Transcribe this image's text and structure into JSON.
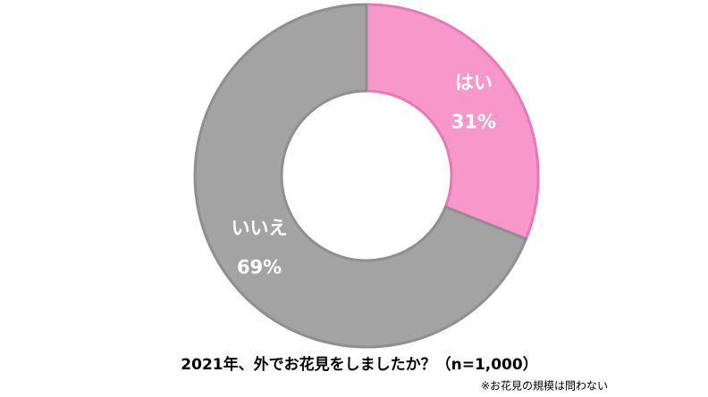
{
  "chart_data": {
    "type": "donut",
    "title": "2021年、外でお花見をしましたか？（n=1,000）",
    "note": "※お花見の規模は問わない",
    "categories": [
      "はい",
      "いいえ"
    ],
    "values": [
      31,
      69
    ],
    "value_labels": [
      "31%",
      "69%"
    ],
    "colors": [
      "#f897c9",
      "#a3a3a3"
    ],
    "edge_colors": [
      "#e77ab4",
      "#8f8f8f"
    ]
  }
}
